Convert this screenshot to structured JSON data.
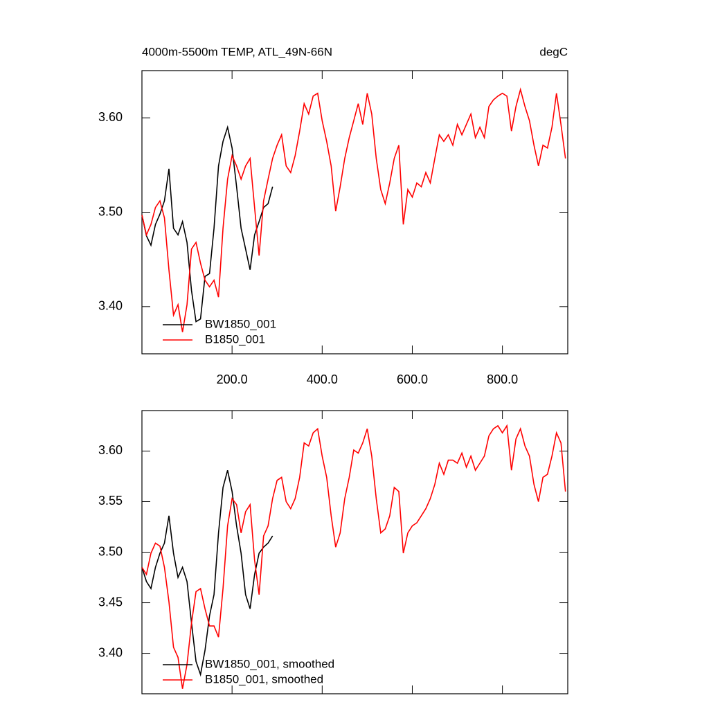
{
  "chart_data": [
    {
      "type": "line",
      "title": "4000m-5500m TEMP, ATL_49N-66N",
      "units": "degC",
      "x": [
        0,
        10,
        20,
        30,
        40,
        50,
        60,
        70,
        80,
        90,
        100,
        110,
        120,
        130,
        140,
        150,
        160,
        170,
        180,
        190,
        200,
        210,
        220,
        230,
        240,
        250,
        260,
        270,
        280,
        290,
        300,
        310,
        320,
        330,
        340,
        350,
        360,
        370,
        380,
        390,
        400,
        410,
        420,
        430,
        440,
        450,
        460,
        470,
        480,
        490,
        500,
        510,
        520,
        530,
        540,
        550,
        560,
        570,
        580,
        590,
        600,
        610,
        620,
        630,
        640,
        650,
        660,
        670,
        680,
        690,
        700,
        710,
        720,
        730,
        740,
        750,
        760,
        770,
        780,
        790,
        800,
        810,
        820,
        830,
        840,
        850,
        860,
        870,
        880,
        890,
        900,
        910,
        920,
        930,
        940
      ],
      "series": [
        {
          "name": "BW1850_001",
          "color": "#000000",
          "values": [
            3.497,
            3.475,
            3.465,
            3.487,
            3.498,
            3.512,
            3.546,
            3.483,
            3.476,
            3.49,
            3.468,
            3.417,
            3.384,
            3.387,
            3.432,
            3.435,
            3.483,
            3.549,
            3.575,
            3.59,
            3.568,
            3.527,
            3.483,
            3.461,
            3.439,
            3.476,
            3.49,
            3.505,
            3.509,
            3.527,
            null,
            null,
            null,
            null,
            null,
            null,
            null,
            null,
            null,
            null,
            null,
            null,
            null,
            null,
            null,
            null,
            null,
            null,
            null,
            null,
            null,
            null,
            null,
            null,
            null,
            null,
            null,
            null,
            null,
            null,
            null,
            null,
            null,
            null,
            null,
            null,
            null,
            null,
            null,
            null,
            null,
            null,
            null,
            null,
            null,
            null,
            null,
            null,
            null,
            null,
            null,
            null,
            null,
            null,
            null,
            null,
            null,
            null,
            null,
            null,
            null,
            null,
            null,
            null,
            null
          ]
        },
        {
          "name": "B1850_001",
          "color": "#ff0000",
          "values": [
            3.497,
            3.476,
            3.487,
            3.505,
            3.512,
            3.494,
            3.439,
            3.391,
            3.402,
            3.373,
            3.402,
            3.461,
            3.468,
            3.446,
            3.428,
            3.421,
            3.428,
            3.41,
            3.483,
            3.535,
            3.56,
            3.549,
            3.535,
            3.549,
            3.557,
            3.505,
            3.454,
            3.512,
            3.535,
            3.557,
            3.571,
            3.582,
            3.549,
            3.542,
            3.56,
            3.586,
            3.615,
            3.604,
            3.623,
            3.626,
            3.597,
            3.575,
            3.549,
            3.501,
            3.527,
            3.557,
            3.579,
            3.597,
            3.615,
            3.593,
            3.626,
            3.604,
            3.557,
            3.524,
            3.509,
            3.531,
            3.557,
            3.571,
            3.487,
            3.524,
            3.516,
            3.531,
            3.527,
            3.542,
            3.531,
            3.557,
            3.582,
            3.575,
            3.582,
            3.571,
            3.593,
            3.582,
            3.593,
            3.604,
            3.579,
            3.59,
            3.579,
            3.612,
            3.619,
            3.623,
            3.626,
            3.623,
            3.586,
            3.612,
            3.63,
            3.612,
            3.597,
            3.571,
            3.549,
            3.571,
            3.568,
            3.59,
            3.626,
            3.593,
            3.557
          ]
        }
      ],
      "xlim": [
        0,
        945
      ],
      "xticks": [
        {
          "value": 200,
          "label": "200.0"
        },
        {
          "value": 400,
          "label": "400.0"
        },
        {
          "value": 600,
          "label": "600.0"
        },
        {
          "value": 800,
          "label": "800.0"
        }
      ],
      "xtick_labels": true,
      "ylim": [
        3.35,
        3.65
      ],
      "yticks": [
        {
          "value": 3.4,
          "label": "3.40"
        },
        {
          "value": 3.5,
          "label": "3.50"
        },
        {
          "value": 3.6,
          "label": "3.60"
        }
      ],
      "legend": "lower left"
    },
    {
      "type": "line",
      "x": [
        0,
        10,
        20,
        30,
        40,
        50,
        60,
        70,
        80,
        90,
        100,
        110,
        120,
        130,
        140,
        150,
        160,
        170,
        180,
        190,
        200,
        210,
        220,
        230,
        240,
        250,
        260,
        270,
        280,
        290,
        300,
        310,
        320,
        330,
        340,
        350,
        360,
        370,
        380,
        390,
        400,
        410,
        420,
        430,
        440,
        450,
        460,
        470,
        480,
        490,
        500,
        510,
        520,
        530,
        540,
        550,
        560,
        570,
        580,
        590,
        600,
        610,
        620,
        630,
        640,
        650,
        660,
        670,
        680,
        690,
        700,
        710,
        720,
        730,
        740,
        750,
        760,
        770,
        780,
        790,
        800,
        810,
        820,
        830,
        840,
        850,
        860,
        870,
        880,
        890,
        900,
        910,
        920,
        930,
        940
      ],
      "series": [
        {
          "name": "BW1850_001, smoothed",
          "color": "#000000",
          "values": [
            3.485,
            3.471,
            3.464,
            3.485,
            3.499,
            3.509,
            3.536,
            3.499,
            3.475,
            3.485,
            3.471,
            3.43,
            3.392,
            3.379,
            3.403,
            3.437,
            3.458,
            3.519,
            3.564,
            3.581,
            3.56,
            3.526,
            3.499,
            3.458,
            3.444,
            3.478,
            3.499,
            3.505,
            3.509,
            3.516,
            null,
            null,
            null,
            null,
            null,
            null,
            null,
            null,
            null,
            null,
            null,
            null,
            null,
            null,
            null,
            null,
            null,
            null,
            null,
            null,
            null,
            null,
            null,
            null,
            null,
            null,
            null,
            null,
            null,
            null,
            null,
            null,
            null,
            null,
            null,
            null,
            null,
            null,
            null,
            null,
            null,
            null,
            null,
            null,
            null,
            null,
            null,
            null,
            null,
            null,
            null,
            null,
            null,
            null,
            null,
            null,
            null,
            null,
            null,
            null,
            null,
            null,
            null,
            null,
            null
          ]
        },
        {
          "name": "B1850_001, smoothed",
          "color": "#ff0000",
          "values": [
            3.485,
            3.478,
            3.499,
            3.509,
            3.506,
            3.485,
            3.451,
            3.406,
            3.396,
            3.365,
            3.389,
            3.43,
            3.461,
            3.464,
            3.444,
            3.427,
            3.427,
            3.416,
            3.464,
            3.526,
            3.553,
            3.547,
            3.519,
            3.54,
            3.547,
            3.492,
            3.458,
            3.516,
            3.526,
            3.553,
            3.571,
            3.574,
            3.55,
            3.543,
            3.553,
            3.574,
            3.608,
            3.605,
            3.618,
            3.622,
            3.595,
            3.574,
            3.536,
            3.505,
            3.519,
            3.553,
            3.574,
            3.601,
            3.598,
            3.608,
            3.622,
            3.595,
            3.553,
            3.519,
            3.523,
            3.536,
            3.564,
            3.56,
            3.499,
            3.519,
            3.526,
            3.529,
            3.536,
            3.543,
            3.553,
            3.567,
            3.588,
            3.577,
            3.591,
            3.591,
            3.588,
            3.598,
            3.584,
            3.595,
            3.581,
            3.588,
            3.595,
            3.615,
            3.622,
            3.625,
            3.618,
            3.625,
            3.581,
            3.612,
            3.622,
            3.605,
            3.595,
            3.567,
            3.55,
            3.574,
            3.577,
            3.595,
            3.618,
            3.608,
            3.56
          ]
        }
      ],
      "xlim": [
        0,
        945
      ],
      "xticks": [
        200,
        400,
        600,
        800
      ],
      "xtick_labels": false,
      "ylim": [
        3.36,
        3.64
      ],
      "yticks": [
        {
          "value": 3.4,
          "label": "3.40"
        },
        3.45,
        {
          "value": 3.5,
          "label": "3.50"
        },
        3.55,
        {
          "value": 3.6,
          "label": "3.60"
        }
      ],
      "legend": "lower left"
    }
  ]
}
